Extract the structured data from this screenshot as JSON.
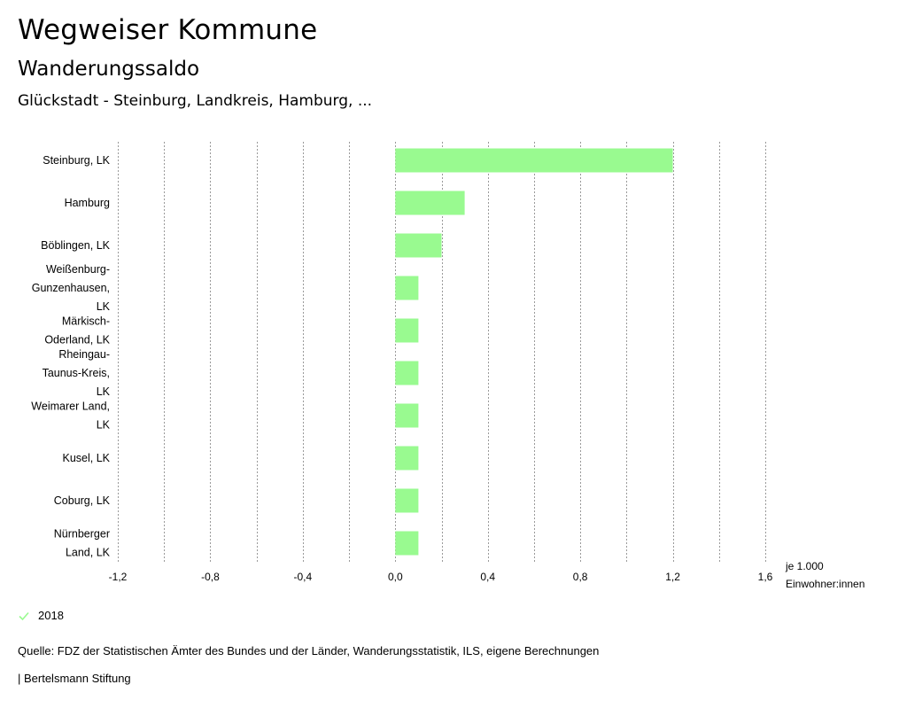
{
  "header": {
    "title": "Wegweiser Kommune",
    "subtitle": "Wanderungssaldo",
    "region": "Glückstadt - Steinburg, Landkreis, Hamburg, ..."
  },
  "colors": {
    "bar": "#99fa90",
    "grid": "#9a9a9a",
    "text": "#000000"
  },
  "chart_data": {
    "type": "bar",
    "orientation": "horizontal",
    "title": "Wanderungssaldo",
    "xlabel_lines": [
      "je 1.000",
      "Einwohner:innen"
    ],
    "xlim": [
      -1.2,
      1.6
    ],
    "x_ticks": [
      -1.2,
      -0.8,
      -0.4,
      0.0,
      0.4,
      0.8,
      1.2,
      1.6
    ],
    "x_tick_labels": [
      "-1,2",
      "-0,8",
      "-0,4",
      "0,0",
      "0,4",
      "0,8",
      "1,2",
      "1,6"
    ],
    "grid": true,
    "categories": [
      [
        "Steinburg, LK"
      ],
      [
        "Hamburg"
      ],
      [
        "Böblingen, LK"
      ],
      [
        "Weißenburg-",
        "Gunzenhausen,",
        "LK"
      ],
      [
        "Märkisch-",
        "Oderland, LK"
      ],
      [
        "Rheingau-",
        "Taunus-Kreis,",
        "LK"
      ],
      [
        "Weimarer Land,",
        "LK"
      ],
      [
        "Kusel, LK"
      ],
      [
        "Coburg, LK"
      ],
      [
        "Nürnberger",
        "Land, LK"
      ]
    ],
    "series": [
      {
        "name": "2018",
        "values": [
          1.2,
          0.3,
          0.2,
          0.1,
          0.1,
          0.1,
          0.1,
          0.1,
          0.1,
          0.1
        ]
      }
    ]
  },
  "legend": {
    "entry": "2018"
  },
  "source": "Quelle: FDZ der Statistischen Ämter des Bundes und der Länder, Wanderungsstatistik, ILS, eigene Berechnungen",
  "footer": "| Bertelsmann Stiftung"
}
